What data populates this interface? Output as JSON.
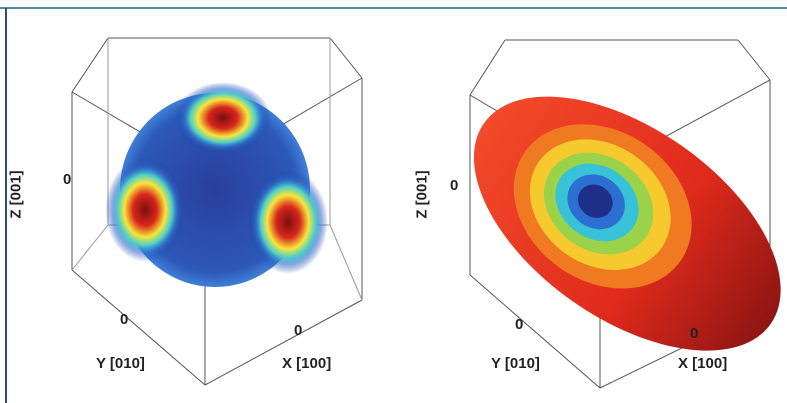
{
  "panels": [
    {
      "z_label": "Z [001]",
      "z_tick": "0",
      "y_tick": "0",
      "y_label": "Y [010]",
      "x_tick": "0",
      "x_label": "X [100]"
    },
    {
      "z_label": "Z [001]",
      "z_tick": "0",
      "y_tick": "0",
      "y_label": "Y [010]",
      "x_tick": "0",
      "x_label": "X [100]"
    }
  ]
}
